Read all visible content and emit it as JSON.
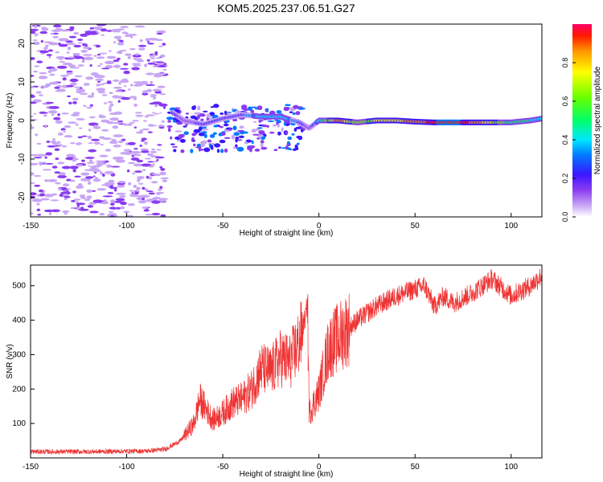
{
  "title": "KOM5.2025.237.06.51.G27",
  "chart_data": [
    {
      "type": "heatmap",
      "title": "KOM5.2025.237.06.51.G27",
      "xlabel": "Height of straight line (km)",
      "ylabel": "Frequency (Hz)",
      "xlim": [
        -150,
        116
      ],
      "ylim": [
        -25,
        25
      ],
      "xticks": [
        -150,
        -100,
        -50,
        0,
        50,
        100
      ],
      "yticks": [
        -20,
        -10,
        0,
        10,
        20
      ],
      "colorbar": {
        "label": "Normalized spectral amplitude",
        "range": [
          0,
          1
        ],
        "ticks": [
          0.0,
          0.2,
          0.4,
          0.6,
          0.8
        ],
        "colors": [
          "#ffffff",
          "#c8a6f5",
          "#8a3cf0",
          "#3b17ff",
          "#0079ff",
          "#00e6ff",
          "#00ff6a",
          "#6aff00",
          "#ffff00",
          "#ff9600",
          "#ff1a00",
          "#ff0066"
        ]
      },
      "ridge": [
        {
          "x": -76,
          "freq": 2,
          "amp": 0.25
        },
        {
          "x": -70,
          "freq": 0,
          "amp": 0.2
        },
        {
          "x": -60,
          "freq": -1,
          "amp": 0.25
        },
        {
          "x": -50,
          "freq": 0.5,
          "amp": 0.3
        },
        {
          "x": -40,
          "freq": 1.5,
          "amp": 0.3
        },
        {
          "x": -30,
          "freq": 1,
          "amp": 0.45
        },
        {
          "x": -20,
          "freq": 1,
          "amp": 0.5
        },
        {
          "x": -10,
          "freq": -0.5,
          "amp": 0.3
        },
        {
          "x": -5,
          "freq": -2,
          "amp": 0.15
        },
        {
          "x": 0,
          "freq": 0,
          "amp": 0.45
        },
        {
          "x": 10,
          "freq": 0,
          "amp": 0.85
        },
        {
          "x": 20,
          "freq": -0.5,
          "amp": 0.6
        },
        {
          "x": 30,
          "freq": 0,
          "amp": 0.7
        },
        {
          "x": 40,
          "freq": 0,
          "amp": 0.75
        },
        {
          "x": 50,
          "freq": -0.3,
          "amp": 0.8
        },
        {
          "x": 60,
          "freq": -0.5,
          "amp": 0.9
        },
        {
          "x": 70,
          "freq": -0.5,
          "amp": 0.95
        },
        {
          "x": 80,
          "freq": -0.5,
          "amp": 0.85
        },
        {
          "x": 90,
          "freq": -0.5,
          "amp": 0.7
        },
        {
          "x": 100,
          "freq": -0.5,
          "amp": 0.55
        },
        {
          "x": 110,
          "freq": 0,
          "amp": 0.5
        },
        {
          "x": 116,
          "freq": 0.5,
          "amp": 0.45
        }
      ]
    },
    {
      "type": "line",
      "xlabel": "Height of straight line (km)",
      "ylabel": "SNR (v/v)",
      "xlim": [
        -150,
        116
      ],
      "ylim": [
        0,
        560
      ],
      "xticks": [
        -150,
        -100,
        -50,
        0,
        50,
        100
      ],
      "yticks": [
        100,
        200,
        300,
        400,
        500
      ],
      "color": "#ee3333",
      "series": [
        {
          "name": "SNR",
          "x": [
            -150,
            -120,
            -90,
            -80,
            -72,
            -65,
            -62,
            -55,
            -50,
            -45,
            -40,
            -35,
            -30,
            -25,
            -20,
            -15,
            -10,
            -7,
            -6,
            -5,
            0,
            5,
            10,
            20,
            30,
            40,
            50,
            55,
            60,
            65,
            70,
            80,
            90,
            100,
            110,
            116
          ],
          "y": [
            18,
            18,
            20,
            25,
            50,
            100,
            170,
            110,
            130,
            160,
            170,
            200,
            260,
            250,
            290,
            280,
            340,
            410,
            450,
            130,
            190,
            320,
            350,
            400,
            440,
            470,
            490,
            500,
            440,
            470,
            450,
            480,
            520,
            470,
            500,
            530
          ]
        }
      ]
    }
  ]
}
